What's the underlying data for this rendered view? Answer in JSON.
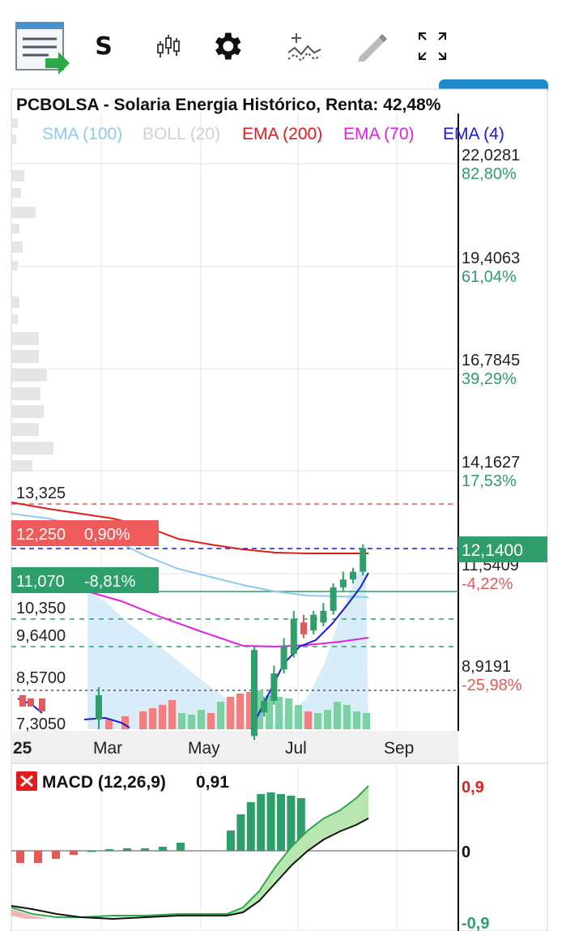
{
  "toolbar": {
    "symbol_letter": "S",
    "icons": [
      "report-icon",
      "candles-icon",
      "gear-icon",
      "indicators-icon",
      "draw-pencil-icon",
      "fullscreen-icon"
    ]
  },
  "header": {
    "title": "PCBOLSA - Solaria Energia Histórico, Renta: 42,48%",
    "legend": [
      {
        "label": "SMA (100)",
        "color": "#8ec9ee"
      },
      {
        "label": "BOLL (20)",
        "color": "#d0d0d0"
      },
      {
        "label": "EMA (200)",
        "color": "#e21b1b"
      },
      {
        "label": "EMA (70)",
        "color": "#e020e0"
      },
      {
        "label": "EMA (4)",
        "color": "#1a1ad8"
      }
    ]
  },
  "price_axis": [
    {
      "price": "22,0281",
      "pct": "82,80%"
    },
    {
      "price": "19,4063",
      "pct": "61,04%"
    },
    {
      "price": "16,7845",
      "pct": "39,29%"
    },
    {
      "price": "14,1627",
      "pct": "17,53%"
    },
    {
      "price": "11,5409",
      "pct": "-4,22%"
    },
    {
      "price": "8,9191",
      "pct": "-25,98%"
    }
  ],
  "current_price": "12,1400",
  "level_labels": {
    "l13325": "13,325",
    "l10350": "10,350",
    "l9640": "9,6400",
    "l8570": "8,5700",
    "l7305": "7,3050"
  },
  "badges": {
    "red": {
      "price": "12,250",
      "pct": "0,90%"
    },
    "green": {
      "price": "11,070",
      "pct": "-8,81%"
    }
  },
  "time_axis": [
    "25",
    "Mar",
    "May",
    "Jul",
    "Sep"
  ],
  "macd": {
    "label": "MACD (12,26,9)",
    "value": "0,91",
    "axis_top": "0,9",
    "axis_zero": "0",
    "axis_bottom": "-0,9"
  },
  "colors": {
    "up": "#2e9e6a",
    "down": "#e25a5a",
    "ema200": "#e21b1b",
    "ema70": "#e020e0",
    "ema4": "#1a1ad8",
    "sma100": "#8ec9ee",
    "fill": "#d9ecfa",
    "accent": "#1e88c8"
  },
  "chart_data": {
    "type": "line",
    "title": "PCBOLSA - Solaria Energia Histórico, Renta: 42,48%",
    "x_labels": [
      "Mar",
      "May",
      "Jul",
      "Sep"
    ],
    "ylim": [
      7.305,
      22.0281
    ],
    "series": [
      {
        "name": "EMA (200)",
        "x": [
          1,
          2,
          3,
          4,
          5,
          6,
          7,
          8,
          9,
          10,
          11,
          12,
          13,
          14,
          15,
          16,
          17,
          18
        ],
        "values": [
          13.0,
          12.85,
          12.7,
          12.5,
          12.35,
          12.2,
          12.12,
          12.08,
          12.05,
          12.04,
          12.03,
          12.03,
          12.03,
          12.04,
          12.04,
          12.05,
          12.06,
          12.08
        ]
      },
      {
        "name": "EMA (70)",
        "x": [
          4,
          6,
          8,
          10,
          12,
          13,
          14,
          15,
          16,
          17,
          18
        ],
        "values": [
          11.1,
          10.9,
          10.4,
          9.9,
          9.58,
          9.57,
          9.6,
          9.62,
          9.65,
          9.7,
          9.75
        ]
      },
      {
        "name": "EMA (4)",
        "x": [
          11,
          12,
          13,
          14,
          15,
          16,
          17,
          18
        ],
        "values": [
          7.4,
          8.3,
          9.3,
          9.6,
          9.9,
          10.4,
          11.0,
          11.8
        ]
      },
      {
        "name": "SMA (100)",
        "x": [
          1,
          3,
          5,
          7,
          9,
          11,
          13,
          15,
          17,
          18
        ],
        "values": [
          12.9,
          12.5,
          11.9,
          11.6,
          11.3,
          11.1,
          11.0,
          11.0,
          11.05,
          11.1
        ]
      }
    ],
    "candles_tail": [
      {
        "o": 7.4,
        "c": 9.6,
        "h": 9.7,
        "l": 7.3
      },
      {
        "o": 8.0,
        "c": 8.3,
        "h": 8.4,
        "l": 7.9
      },
      {
        "o": 8.3,
        "c": 9.0,
        "h": 9.2,
        "l": 8.2
      },
      {
        "o": 9.1,
        "c": 9.7,
        "h": 9.9,
        "l": 9.0
      },
      {
        "o": 9.5,
        "c": 10.4,
        "h": 10.6,
        "l": 9.4
      },
      {
        "o": 10.3,
        "c": 10.0,
        "h": 10.5,
        "l": 9.9
      },
      {
        "o": 10.1,
        "c": 10.5,
        "h": 10.6,
        "l": 10.0
      },
      {
        "o": 10.3,
        "c": 10.6,
        "h": 10.8,
        "l": 10.2
      },
      {
        "o": 10.6,
        "c": 11.2,
        "h": 11.3,
        "l": 10.5
      },
      {
        "o": 11.2,
        "c": 11.4,
        "h": 11.6,
        "l": 11.1
      },
      {
        "o": 11.4,
        "c": 11.6,
        "h": 11.7,
        "l": 11.3
      },
      {
        "o": 11.6,
        "c": 12.2,
        "h": 12.3,
        "l": 11.5
      }
    ],
    "macd_hist": [
      -0.15,
      -0.15,
      -0.1,
      -0.05,
      0.0,
      0.02,
      0.03,
      0.03,
      0.05,
      0.1,
      0.25,
      0.45,
      0.6,
      0.7,
      0.72,
      0.7,
      0.68,
      0.65
    ]
  }
}
